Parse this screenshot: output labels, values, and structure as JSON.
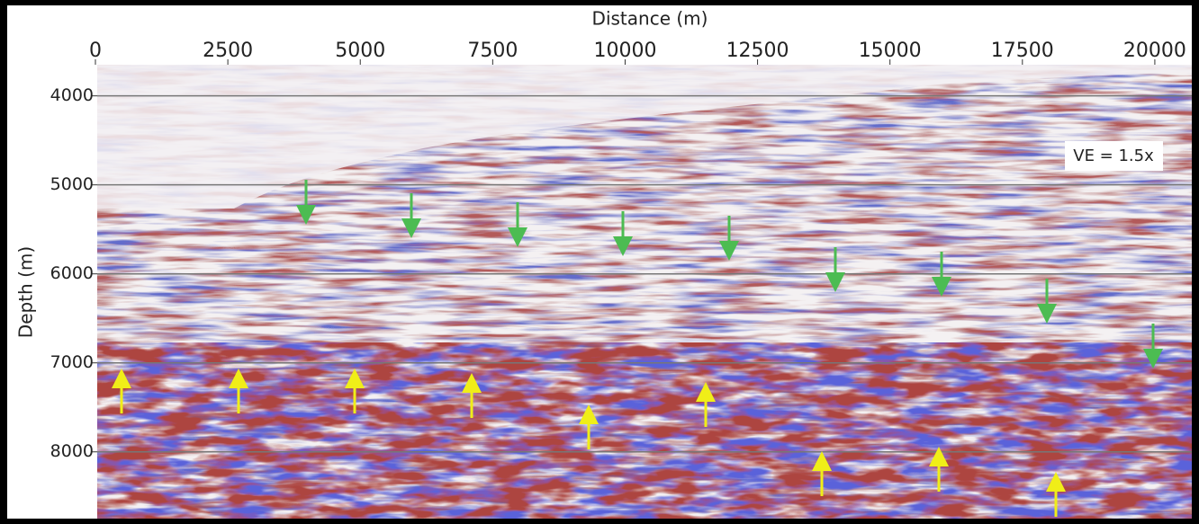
{
  "chart_data": {
    "type": "seismic-section",
    "x_label": "Distance (m)",
    "y_label": "Depth (m)",
    "xlim": [
      0,
      20800
    ],
    "xticks": [
      0,
      2500,
      5000,
      7500,
      10000,
      12500,
      15000,
      17500,
      20000
    ],
    "ylim": [
      3650,
      8750
    ],
    "yticks": [
      4000,
      5000,
      6000,
      7000,
      8000
    ],
    "y_inverted": true,
    "grid": true,
    "annotation": "VE = 1.5x"
  }
}
